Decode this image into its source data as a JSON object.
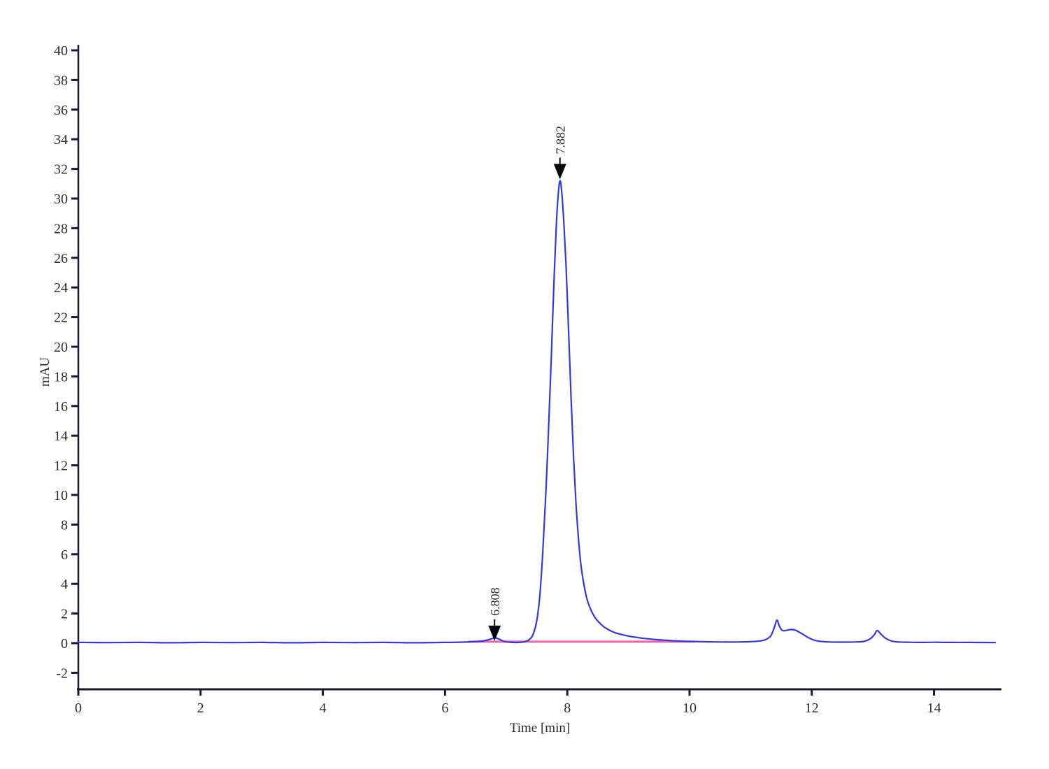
{
  "chart_data": {
    "type": "line",
    "title": "",
    "xlabel": "Time [min]",
    "ylabel": "mAU",
    "xlim": [
      0,
      15.1
    ],
    "ylim": [
      -3.2,
      40.3
    ],
    "x_ticks": [
      0,
      2,
      4,
      6,
      8,
      10,
      12,
      14
    ],
    "y_ticks": [
      40,
      38,
      36,
      34,
      32,
      30,
      28,
      26,
      24,
      22,
      20,
      18,
      16,
      14,
      12,
      10,
      8,
      6,
      4,
      2,
      0,
      -2
    ],
    "grid": false,
    "legend": null,
    "colors": {
      "signal": "#3636e0",
      "integration_baseline": "#f260a8",
      "axis": "#181830",
      "tick_text": "#2b2b2b",
      "arrow": "#08080f"
    },
    "series": [
      {
        "name": "detector-signal",
        "color": "#3636e0",
        "points": [
          [
            0,
            0.05
          ],
          [
            0.5,
            0.04
          ],
          [
            1,
            0.05
          ],
          [
            1.5,
            0.03
          ],
          [
            2,
            0.05
          ],
          [
            2.5,
            0.04
          ],
          [
            3,
            0.05
          ],
          [
            3.5,
            0.03
          ],
          [
            4,
            0.05
          ],
          [
            4.5,
            0.04
          ],
          [
            5,
            0.05
          ],
          [
            5.5,
            0.03
          ],
          [
            6,
            0.05
          ],
          [
            6.3,
            0.07
          ],
          [
            6.45,
            0.1
          ],
          [
            6.6,
            0.14
          ],
          [
            6.7,
            0.22
          ],
          [
            6.78,
            0.32
          ],
          [
            6.82,
            0.36
          ],
          [
            6.88,
            0.28
          ],
          [
            6.95,
            0.14
          ],
          [
            7.02,
            0.08
          ],
          [
            7.1,
            0.05
          ],
          [
            7.2,
            0.05
          ],
          [
            7.3,
            0.1
          ],
          [
            7.38,
            0.25
          ],
          [
            7.44,
            0.6
          ],
          [
            7.5,
            1.5
          ],
          [
            7.55,
            3.2
          ],
          [
            7.6,
            6.2
          ],
          [
            7.65,
            10.2
          ],
          [
            7.7,
            15.2
          ],
          [
            7.74,
            19.5
          ],
          [
            7.78,
            24.2
          ],
          [
            7.82,
            28.2
          ],
          [
            7.85,
            30.2
          ],
          [
            7.88,
            31.2
          ],
          [
            7.91,
            30.4
          ],
          [
            7.94,
            28.6
          ],
          [
            7.98,
            25.4
          ],
          [
            8.02,
            21.2
          ],
          [
            8.06,
            16.8
          ],
          [
            8.1,
            12.8
          ],
          [
            8.14,
            9.6
          ],
          [
            8.18,
            7.2
          ],
          [
            8.22,
            5.4
          ],
          [
            8.27,
            4.0
          ],
          [
            8.32,
            3.0
          ],
          [
            8.38,
            2.3
          ],
          [
            8.45,
            1.75
          ],
          [
            8.52,
            1.4
          ],
          [
            8.6,
            1.1
          ],
          [
            8.7,
            0.85
          ],
          [
            8.8,
            0.68
          ],
          [
            8.92,
            0.55
          ],
          [
            9.05,
            0.44
          ],
          [
            9.2,
            0.35
          ],
          [
            9.4,
            0.26
          ],
          [
            9.6,
            0.2
          ],
          [
            9.8,
            0.15
          ],
          [
            10.0,
            0.12
          ],
          [
            10.2,
            0.1
          ],
          [
            10.5,
            0.08
          ],
          [
            10.8,
            0.08
          ],
          [
            11.0,
            0.1
          ],
          [
            11.15,
            0.15
          ],
          [
            11.25,
            0.25
          ],
          [
            11.33,
            0.5
          ],
          [
            11.39,
            1.1
          ],
          [
            11.43,
            1.55
          ],
          [
            11.47,
            1.15
          ],
          [
            11.51,
            0.88
          ],
          [
            11.56,
            0.84
          ],
          [
            11.62,
            0.9
          ],
          [
            11.68,
            0.92
          ],
          [
            11.74,
            0.86
          ],
          [
            11.82,
            0.68
          ],
          [
            11.9,
            0.48
          ],
          [
            11.98,
            0.3
          ],
          [
            12.06,
            0.18
          ],
          [
            12.15,
            0.12
          ],
          [
            12.3,
            0.08
          ],
          [
            12.5,
            0.07
          ],
          [
            12.7,
            0.08
          ],
          [
            12.85,
            0.12
          ],
          [
            12.95,
            0.28
          ],
          [
            13.02,
            0.55
          ],
          [
            13.07,
            0.85
          ],
          [
            13.13,
            0.62
          ],
          [
            13.2,
            0.35
          ],
          [
            13.3,
            0.15
          ],
          [
            13.42,
            0.08
          ],
          [
            13.6,
            0.06
          ],
          [
            13.8,
            0.05
          ],
          [
            14.0,
            0.06
          ],
          [
            14.3,
            0.05
          ],
          [
            14.6,
            0.05
          ],
          [
            15.0,
            0.04
          ]
        ]
      },
      {
        "name": "integration-baseline",
        "color": "#f260a8",
        "points": [
          [
            6.38,
            0.1
          ],
          [
            10.08,
            0.1
          ]
        ]
      }
    ],
    "peaks": [
      {
        "label": "6.808",
        "t": 6.81,
        "apex": 0.36,
        "arrow_tip_mau": 0.15
      },
      {
        "label": "7.882",
        "t": 7.88,
        "apex": 31.2,
        "arrow_tip_mau": 31.3
      }
    ]
  }
}
